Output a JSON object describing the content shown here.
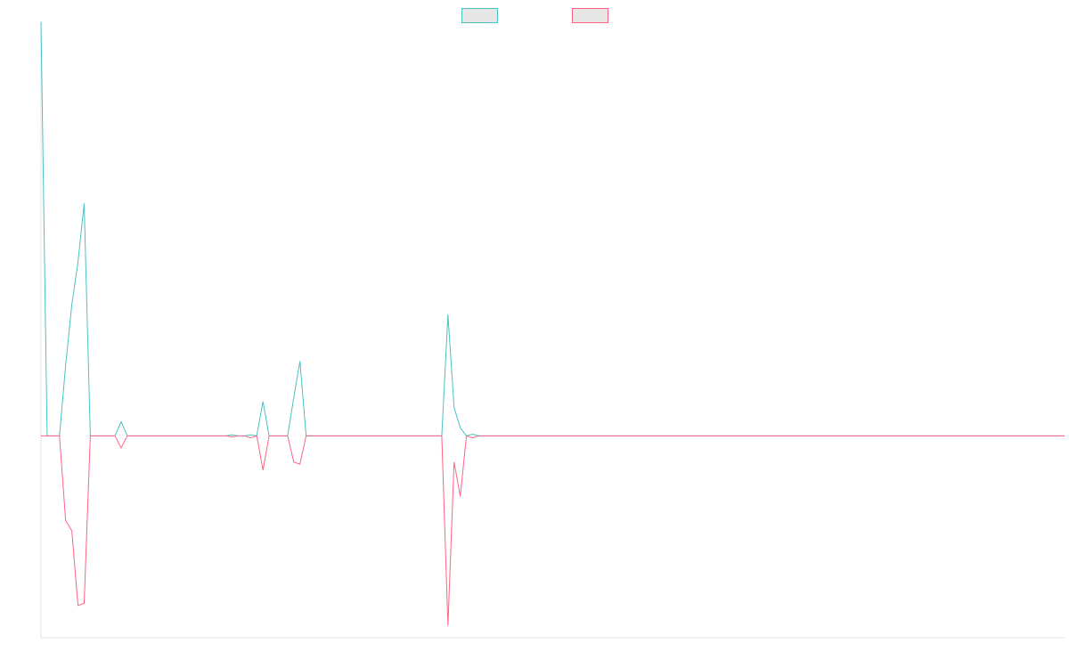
{
  "chart_data": {
    "type": "line",
    "title": "",
    "xlabel": "",
    "ylabel": "",
    "grid": false,
    "legend_position": "top-center",
    "x_count": 167,
    "ylim": [
      -10,
      20
    ],
    "series": [
      {
        "color": "#4bc0c0",
        "points": [
          [
            0,
            20.5
          ],
          [
            1,
            0
          ],
          [
            2,
            0
          ],
          [
            3,
            0
          ],
          [
            4,
            3.5
          ],
          [
            5,
            6.5
          ],
          [
            6,
            8.6
          ],
          [
            7,
            11.5
          ],
          [
            8,
            0
          ],
          [
            9,
            0
          ],
          [
            10,
            0
          ],
          [
            11,
            0
          ],
          [
            12,
            0
          ],
          [
            13,
            0.7
          ],
          [
            14,
            0
          ],
          [
            30,
            0
          ],
          [
            31,
            0.05
          ],
          [
            32,
            0
          ],
          [
            33,
            0
          ],
          [
            34,
            0.05
          ],
          [
            35,
            0
          ],
          [
            36,
            1.7
          ],
          [
            37,
            0
          ],
          [
            38,
            0
          ],
          [
            39,
            0
          ],
          [
            40,
            0
          ],
          [
            41,
            1.9
          ],
          [
            42,
            3.7
          ],
          [
            43,
            0
          ],
          [
            65,
            0
          ],
          [
            66,
            6.0
          ],
          [
            67,
            1.4
          ],
          [
            68,
            0.4
          ],
          [
            69,
            0
          ],
          [
            70,
            0.08
          ],
          [
            71,
            0
          ],
          [
            166,
            0
          ]
        ]
      },
      {
        "color": "#ff6384",
        "points": [
          [
            0,
            0
          ],
          [
            1,
            0
          ],
          [
            2,
            0
          ],
          [
            3,
            0
          ],
          [
            4,
            -4.2
          ],
          [
            5,
            -4.7
          ],
          [
            6,
            -8.4
          ],
          [
            7,
            -8.3
          ],
          [
            8,
            0
          ],
          [
            9,
            0
          ],
          [
            10,
            0
          ],
          [
            11,
            0
          ],
          [
            12,
            0
          ],
          [
            13,
            -0.6
          ],
          [
            14,
            0
          ],
          [
            30,
            0
          ],
          [
            31,
            -0.05
          ],
          [
            32,
            0
          ],
          [
            33,
            0
          ],
          [
            34,
            -0.1
          ],
          [
            35,
            0
          ],
          [
            36,
            -1.7
          ],
          [
            37,
            0
          ],
          [
            38,
            0
          ],
          [
            39,
            0
          ],
          [
            40,
            0
          ],
          [
            41,
            -1.3
          ],
          [
            42,
            -1.4
          ],
          [
            43,
            0
          ],
          [
            65,
            0
          ],
          [
            66,
            -9.4
          ],
          [
            67,
            -1.3
          ],
          [
            68,
            -3.0
          ],
          [
            69,
            0
          ],
          [
            70,
            -0.1
          ],
          [
            71,
            0
          ],
          [
            166,
            0
          ]
        ]
      }
    ]
  }
}
